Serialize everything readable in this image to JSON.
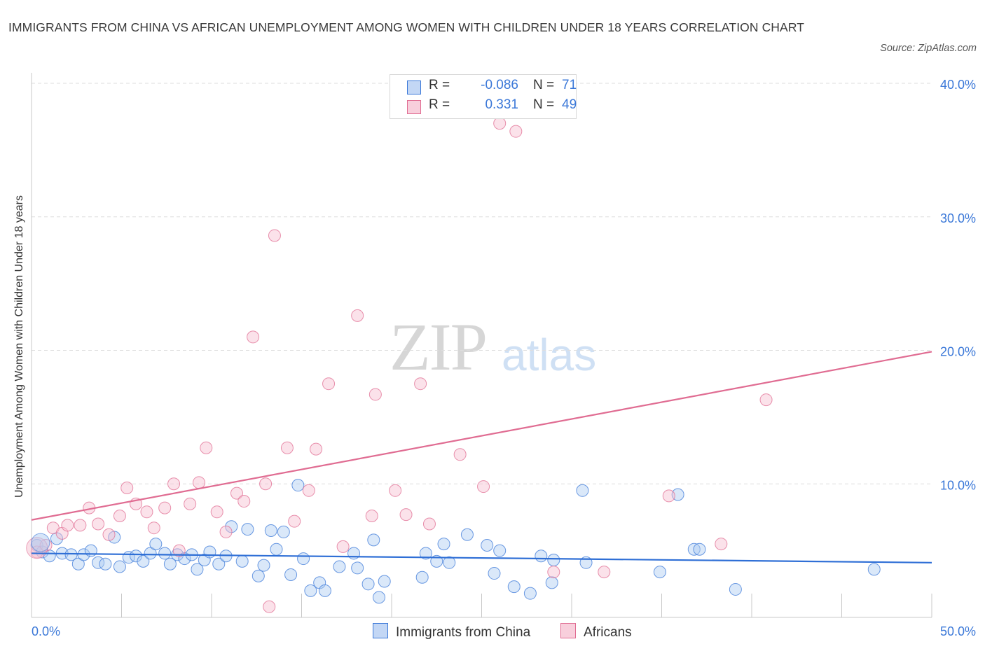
{
  "title": "IMMIGRANTS FROM CHINA VS AFRICAN UNEMPLOYMENT AMONG WOMEN WITH CHILDREN UNDER 18 YEARS CORRELATION CHART",
  "source": "Source: ZipAtlas.com",
  "watermark": {
    "part1": "ZIP",
    "part2": "atlas"
  },
  "legend": {
    "r_label": "R =",
    "n_label": "N =",
    "rows": [
      {
        "r": "-0.086",
        "n": "71"
      },
      {
        "r": "0.331",
        "n": "49"
      }
    ]
  },
  "colors": {
    "china": "#3b78d8",
    "africans": "#e06c92",
    "china_fill": "#aecbf2",
    "africans_fill": "#f6bfd0"
  },
  "chart_data": {
    "type": "scatter",
    "xlabel": "",
    "ylabel": "Unemployment Among Women with Children Under 18 years",
    "xlim": [
      0,
      50
    ],
    "ylim": [
      0,
      40
    ],
    "x_tick_labels": [
      "0.0%",
      "50.0%"
    ],
    "y_tick_labels": [
      "10.0%",
      "20.0%",
      "30.0%",
      "40.0%"
    ],
    "y_ticks": [
      10,
      20,
      30,
      40
    ],
    "grid": true,
    "legend_position": "bottom-center",
    "series": [
      {
        "name": "Immigrants from China",
        "color": "#3b78d8",
        "trend": {
          "x": [
            0,
            50
          ],
          "y": [
            4.8,
            4.1
          ]
        },
        "points": [
          [
            0.3,
            5.4
          ],
          [
            0.6,
            4.9
          ],
          [
            1.0,
            4.6
          ],
          [
            1.4,
            5.9
          ],
          [
            1.7,
            4.8
          ],
          [
            2.2,
            4.7
          ],
          [
            2.6,
            4.0
          ],
          [
            2.9,
            4.7
          ],
          [
            3.3,
            5.0
          ],
          [
            3.7,
            4.1
          ],
          [
            4.1,
            4.0
          ],
          [
            4.6,
            6.0
          ],
          [
            4.9,
            3.8
          ],
          [
            5.4,
            4.5
          ],
          [
            5.8,
            4.6
          ],
          [
            6.2,
            4.2
          ],
          [
            6.6,
            4.8
          ],
          [
            6.9,
            5.5
          ],
          [
            7.4,
            4.8
          ],
          [
            7.7,
            4.0
          ],
          [
            8.1,
            4.7
          ],
          [
            8.5,
            4.4
          ],
          [
            8.9,
            4.7
          ],
          [
            9.2,
            3.6
          ],
          [
            9.6,
            4.3
          ],
          [
            9.9,
            4.9
          ],
          [
            10.4,
            4.0
          ],
          [
            10.8,
            4.6
          ],
          [
            11.1,
            6.8
          ],
          [
            11.7,
            4.2
          ],
          [
            12.0,
            6.6
          ],
          [
            12.6,
            3.1
          ],
          [
            12.9,
            3.9
          ],
          [
            13.3,
            6.5
          ],
          [
            13.6,
            5.1
          ],
          [
            14.0,
            6.4
          ],
          [
            14.4,
            3.2
          ],
          [
            14.8,
            9.9
          ],
          [
            15.1,
            4.4
          ],
          [
            15.5,
            2.0
          ],
          [
            16.0,
            2.6
          ],
          [
            16.3,
            2.0
          ],
          [
            17.1,
            3.8
          ],
          [
            17.9,
            4.8
          ],
          [
            18.1,
            3.7
          ],
          [
            18.7,
            2.5
          ],
          [
            19.0,
            5.8
          ],
          [
            19.3,
            1.5
          ],
          [
            19.6,
            2.7
          ],
          [
            21.7,
            3.0
          ],
          [
            21.9,
            4.8
          ],
          [
            22.5,
            4.2
          ],
          [
            22.9,
            5.5
          ],
          [
            23.2,
            4.1
          ],
          [
            24.2,
            6.2
          ],
          [
            25.3,
            5.4
          ],
          [
            25.7,
            3.3
          ],
          [
            26.0,
            5.0
          ],
          [
            26.8,
            2.3
          ],
          [
            27.7,
            1.8
          ],
          [
            28.3,
            4.6
          ],
          [
            28.9,
            2.6
          ],
          [
            29.0,
            4.3
          ],
          [
            30.6,
            9.5
          ],
          [
            30.8,
            4.1
          ],
          [
            34.9,
            3.4
          ],
          [
            35.9,
            9.2
          ],
          [
            36.8,
            5.1
          ],
          [
            37.1,
            5.1
          ],
          [
            39.1,
            2.1
          ],
          [
            46.8,
            3.6
          ]
        ]
      },
      {
        "name": "Africans",
        "color": "#e06c92",
        "trend": {
          "x": [
            0,
            50
          ],
          "y": [
            7.3,
            19.9
          ]
        },
        "points": [
          [
            0.3,
            4.9
          ],
          [
            0.8,
            5.4
          ],
          [
            1.2,
            6.7
          ],
          [
            1.7,
            6.3
          ],
          [
            2.0,
            6.9
          ],
          [
            2.7,
            6.9
          ],
          [
            3.2,
            8.2
          ],
          [
            3.7,
            7.0
          ],
          [
            4.3,
            6.2
          ],
          [
            4.9,
            7.6
          ],
          [
            5.3,
            9.7
          ],
          [
            5.8,
            8.5
          ],
          [
            6.4,
            7.9
          ],
          [
            6.8,
            6.7
          ],
          [
            7.4,
            8.2
          ],
          [
            7.9,
            10.0
          ],
          [
            8.2,
            5.0
          ],
          [
            8.8,
            8.5
          ],
          [
            9.3,
            10.1
          ],
          [
            9.7,
            12.7
          ],
          [
            10.3,
            7.9
          ],
          [
            10.8,
            6.4
          ],
          [
            11.4,
            9.3
          ],
          [
            11.8,
            8.7
          ],
          [
            12.3,
            21.0
          ],
          [
            13.0,
            10.0
          ],
          [
            13.5,
            28.6
          ],
          [
            13.2,
            0.8
          ],
          [
            14.2,
            12.7
          ],
          [
            14.6,
            7.2
          ],
          [
            15.4,
            9.5
          ],
          [
            15.8,
            12.6
          ],
          [
            16.5,
            17.5
          ],
          [
            17.3,
            5.3
          ],
          [
            18.1,
            22.6
          ],
          [
            18.9,
            7.6
          ],
          [
            19.1,
            16.7
          ],
          [
            20.2,
            9.5
          ],
          [
            20.8,
            7.7
          ],
          [
            21.6,
            17.5
          ],
          [
            22.1,
            7.0
          ],
          [
            23.8,
            12.2
          ],
          [
            25.1,
            9.8
          ],
          [
            26.0,
            37.0
          ],
          [
            26.9,
            36.4
          ],
          [
            29.0,
            3.4
          ],
          [
            31.8,
            3.4
          ],
          [
            35.4,
            9.1
          ],
          [
            38.3,
            5.5
          ],
          [
            40.8,
            16.3
          ]
        ]
      }
    ]
  }
}
